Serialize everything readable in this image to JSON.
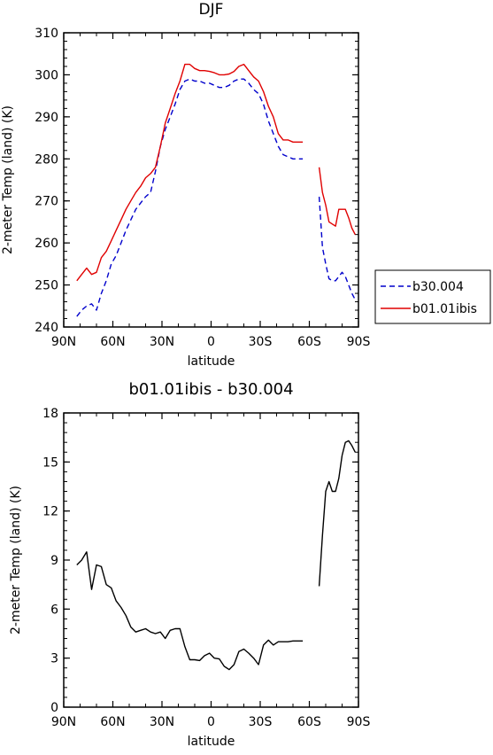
{
  "chart_data": [
    {
      "type": "line",
      "title": "DJF",
      "xlabel": "latitude",
      "ylabel": "2-meter Temp (land) (K)",
      "xlim": [
        90,
        -90
      ],
      "ylim": [
        240,
        310
      ],
      "x_ticks": [
        90,
        60,
        30,
        0,
        -30,
        -60,
        -90
      ],
      "x_tick_labels": [
        "90N",
        "60N",
        "30N",
        "0",
        "30S",
        "60S",
        "90S"
      ],
      "y_ticks": [
        240,
        250,
        260,
        270,
        280,
        290,
        300,
        310
      ],
      "y_tick_labels": [
        "240",
        "250",
        "260",
        "270",
        "280",
        "290",
        "300",
        "310"
      ],
      "legend": {
        "placement": "right, outside plot",
        "entries": [
          "b30.004",
          "b01.01ibis"
        ]
      },
      "series": [
        {
          "name": "b30.004",
          "color": "#0000cc",
          "dash": "dashed",
          "segments": [
            {
              "x": [
                82,
                79,
                76,
                73,
                70,
                67,
                64,
                61,
                58,
                55,
                52,
                49,
                46,
                43,
                40,
                37,
                34,
                31,
                28,
                25,
                22,
                19,
                16,
                13,
                10,
                7,
                4,
                1,
                -2,
                -5,
                -8,
                -11,
                -14,
                -17,
                -20,
                -23,
                -26,
                -29,
                -32,
                -35,
                -38,
                -41,
                -44,
                -47,
                -50,
                -53,
                -56
              ],
              "y": [
                242.5,
                244,
                245,
                245.5,
                244,
                248,
                251,
                255,
                257,
                260,
                263,
                265.5,
                268,
                269.5,
                271,
                272,
                277,
                283,
                287,
                290,
                293,
                296.5,
                298.5,
                299,
                298.5,
                298.5,
                298,
                298,
                297.5,
                297,
                297,
                297.5,
                298.5,
                299,
                299,
                298,
                296.5,
                295.5,
                293,
                289,
                286,
                283,
                281,
                280.5,
                280,
                280,
                280
              ]
            },
            {
              "x": [
                -66,
                -68,
                -70,
                -72,
                -74,
                -76,
                -78,
                -80,
                -82,
                -84,
                -86,
                -88
              ],
              "y": [
                271,
                259,
                255,
                251.5,
                251,
                251,
                252,
                253,
                252,
                250,
                248,
                246.5
              ]
            }
          ]
        },
        {
          "name": "b01.01ibis",
          "color": "#e00000",
          "dash": "solid",
          "segments": [
            {
              "x": [
                82,
                79,
                76,
                73,
                70,
                67,
                64,
                61,
                58,
                55,
                52,
                49,
                46,
                43,
                40,
                37,
                34,
                31,
                28,
                25,
                22,
                19,
                16,
                13,
                10,
                7,
                4,
                1,
                -2,
                -5,
                -8,
                -11,
                -14,
                -17,
                -20,
                -23,
                -26,
                -29,
                -32,
                -35,
                -38,
                -41,
                -44,
                -47,
                -50,
                -53,
                -56
              ],
              "y": [
                251,
                252.5,
                254,
                252.5,
                253,
                256.5,
                258,
                260.5,
                263,
                265.5,
                268,
                270,
                272,
                273.5,
                275.5,
                276.5,
                278,
                283,
                288.5,
                292,
                295.5,
                298.5,
                302.5,
                302.5,
                301.5,
                301,
                301,
                300.8,
                300.5,
                300,
                300,
                300.2,
                300.8,
                302,
                302.5,
                301,
                299.5,
                298.5,
                296,
                292.5,
                290,
                286,
                284.5,
                284.5,
                284,
                284,
                284
              ]
            },
            {
              "x": [
                -66,
                -68,
                -70,
                -72,
                -74,
                -76,
                -78,
                -80,
                -82,
                -84,
                -86,
                -88
              ],
              "y": [
                278,
                272,
                269,
                265,
                264.5,
                264,
                268,
                268,
                268,
                266,
                263.5,
                262
              ]
            }
          ]
        }
      ]
    },
    {
      "type": "line",
      "title": "b01.01ibis - b30.004",
      "xlabel": "latitude",
      "ylabel": "2-meter Temp (land) (K)",
      "xlim": [
        90,
        -90
      ],
      "ylim": [
        0,
        18
      ],
      "x_ticks": [
        90,
        60,
        30,
        0,
        -30,
        -60,
        -90
      ],
      "x_tick_labels": [
        "90N",
        "60N",
        "30N",
        "0",
        "30S",
        "60S",
        "90S"
      ],
      "y_ticks": [
        0,
        3,
        6,
        9,
        12,
        15,
        18
      ],
      "y_tick_labels": [
        "0",
        "3",
        "6",
        "9",
        "12",
        "15",
        "18"
      ],
      "series": [
        {
          "color": "#000000",
          "dash": "solid",
          "segments": [
            {
              "x": [
                82,
                79,
                76,
                73,
                70,
                67,
                64,
                61,
                58,
                55,
                52,
                49,
                46,
                43,
                40,
                37,
                34,
                31,
                28,
                25,
                22,
                19,
                16,
                13,
                10,
                7,
                4,
                1,
                -2,
                -5,
                -8,
                -11,
                -14,
                -17,
                -20,
                -23,
                -26,
                -29,
                -32,
                -35,
                -38,
                -41,
                -44,
                -47,
                -50,
                -53,
                -56
              ],
              "y": [
                8.7,
                9,
                9.5,
                7.2,
                8.7,
                8.6,
                7.5,
                7.3,
                6.5,
                6.1,
                5.6,
                4.9,
                4.6,
                4.7,
                4.8,
                4.6,
                4.5,
                4.6,
                4.2,
                4.7,
                4.8,
                4.8,
                3.7,
                2.9,
                2.9,
                2.85,
                3.15,
                3.3,
                3.0,
                2.95,
                2.5,
                2.3,
                2.6,
                3.4,
                3.55,
                3.3,
                3.0,
                2.6,
                3.8,
                4.1,
                3.8,
                4.0,
                4.0,
                4.0,
                4.05,
                4.05,
                4.05
              ]
            },
            {
              "x": [
                -66,
                -68,
                -70,
                -72,
                -74,
                -76,
                -78,
                -80,
                -82,
                -84,
                -86,
                -88
              ],
              "y": [
                7.4,
                10.5,
                13.2,
                13.8,
                13.2,
                13.2,
                14.0,
                15.4,
                16.2,
                16.3,
                16.0,
                15.6
              ]
            }
          ]
        }
      ]
    }
  ]
}
